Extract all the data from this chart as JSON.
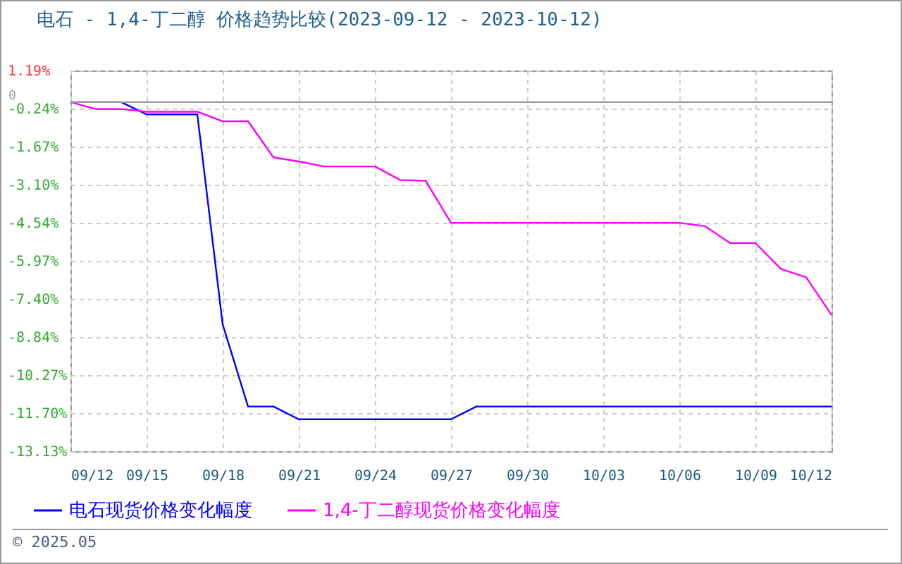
{
  "chart_data": {
    "type": "line",
    "title": "电石 - 1,4-丁二醇 价格趋势比较(2023-09-12 - 2023-10-12)",
    "x": [
      "2023-09-12",
      "2023-09-13",
      "2023-09-14",
      "2023-09-15",
      "2023-09-16",
      "2023-09-17",
      "2023-09-18",
      "2023-09-19",
      "2023-09-20",
      "2023-09-21",
      "2023-09-22",
      "2023-09-23",
      "2023-09-24",
      "2023-09-25",
      "2023-09-26",
      "2023-09-27",
      "2023-09-28",
      "2023-09-29",
      "2023-09-30",
      "2023-10-01",
      "2023-10-02",
      "2023-10-03",
      "2023-10-04",
      "2023-10-05",
      "2023-10-06",
      "2023-10-07",
      "2023-10-08",
      "2023-10-09",
      "2023-10-10",
      "2023-10-11",
      "2023-10-12"
    ],
    "series": [
      {
        "name": "电石现货价格变化幅度",
        "color": "#0000ff",
        "values": [
          0,
          0,
          0,
          -0.46,
          -0.46,
          -0.46,
          -8.36,
          -11.45,
          -11.45,
          -11.93,
          -11.93,
          -11.93,
          -11.93,
          -11.93,
          -11.93,
          -11.93,
          -11.45,
          -11.45,
          -11.45,
          -11.45,
          -11.45,
          -11.45,
          -11.45,
          -11.45,
          -11.45,
          -11.45,
          -11.45,
          -11.45,
          -11.45,
          -11.45,
          -11.45
        ]
      },
      {
        "name": "1,4-丁二醇现货价格变化幅度",
        "color": "#ff00ff",
        "values": [
          0,
          -0.26,
          -0.26,
          -0.36,
          -0.36,
          -0.36,
          -0.72,
          -0.72,
          -2.08,
          -2.23,
          -2.42,
          -2.42,
          -2.42,
          -2.93,
          -2.96,
          -4.54,
          -4.54,
          -4.54,
          -4.54,
          -4.54,
          -4.54,
          -4.54,
          -4.54,
          -4.54,
          -4.54,
          -4.66,
          -5.3,
          -5.3,
          -6.27,
          -6.59,
          -8.0
        ]
      }
    ],
    "xlim": [
      "2023-09-12",
      "2023-10-12"
    ],
    "xticks": [
      {
        "value": "2023-09-12",
        "label": "09/12"
      },
      {
        "value": "2023-09-15",
        "label": "09/15"
      },
      {
        "value": "2023-09-18",
        "label": "09/18"
      },
      {
        "value": "2023-09-21",
        "label": "09/21"
      },
      {
        "value": "2023-09-24",
        "label": "09/24"
      },
      {
        "value": "2023-09-27",
        "label": "09/27"
      },
      {
        "value": "2023-09-30",
        "label": "09/30"
      },
      {
        "value": "2023-10-03",
        "label": "10/03"
      },
      {
        "value": "2023-10-06",
        "label": "10/06"
      },
      {
        "value": "2023-10-09",
        "label": "10/09"
      },
      {
        "value": "2023-10-12",
        "label": "10/12"
      }
    ],
    "ylim": [
      -13.13,
      1.19
    ],
    "yticks": [
      {
        "value": 1.19,
        "label": "1.19%"
      },
      {
        "value": -0.24,
        "label": "-0.24%"
      },
      {
        "value": -1.67,
        "label": "-1.67%"
      },
      {
        "value": -3.1,
        "label": "-3.10%"
      },
      {
        "value": -4.54,
        "label": "-4.54%"
      },
      {
        "value": -5.97,
        "label": "-5.97%"
      },
      {
        "value": -7.4,
        "label": "-7.40%"
      },
      {
        "value": -8.84,
        "label": "-8.84%"
      },
      {
        "value": -10.27,
        "label": "-10.27%"
      },
      {
        "value": -11.7,
        "label": "-11.70%"
      },
      {
        "value": -13.13,
        "label": "-13.13%"
      }
    ],
    "ref_lines": [
      {
        "axis": "y",
        "value": 0,
        "label": "0",
        "color": "#999999"
      }
    ],
    "grid": true,
    "legend": "bottom",
    "line_style": "solid",
    "annotations": [
      "© 2025.05"
    ]
  }
}
